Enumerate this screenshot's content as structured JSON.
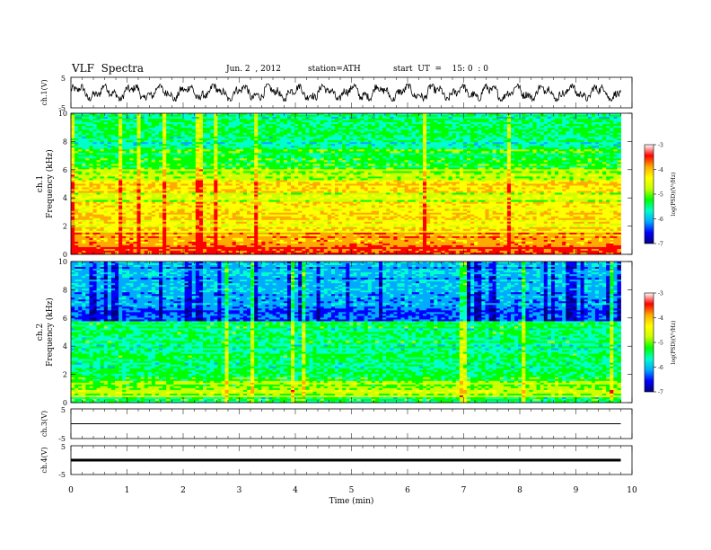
{
  "header": {
    "title": "VLF  Spectra",
    "date": "Jun. 2  , 2012",
    "station": "station=ATH",
    "start": "start  UT  =    15: 0  : 0"
  },
  "chart_data": [
    {
      "type": "line",
      "panel": "ch1-waveform",
      "ylabel": "ch.1(V)",
      "yticks": [
        "5",
        "-5"
      ],
      "ylim": [
        -5,
        5
      ],
      "color": "#000000"
    },
    {
      "type": "heatmap",
      "panel": "ch1-spectrogram",
      "ylabel": "ch.1\nFrequency  (kHz)",
      "ylabel_lines": [
        "ch.1",
        "Frequency  (kHz)"
      ],
      "ylim": [
        0,
        10
      ],
      "yticks": [
        "0",
        "2",
        "4",
        "6",
        "8",
        "10"
      ],
      "colorbar": {
        "label": "log(PSD)(V²/Hz)",
        "range": [
          -7,
          -3
        ],
        "ticks": [
          "-3",
          "-4",
          "-5",
          "-6",
          "-7"
        ]
      }
    },
    {
      "type": "heatmap",
      "panel": "ch2-spectrogram",
      "ylabel": "ch.2\nFrequency  (kHz)",
      "ylabel_lines": [
        "ch.2",
        "Frequency  (kHz)"
      ],
      "ylim": [
        0,
        10
      ],
      "yticks": [
        "0",
        "2",
        "4",
        "6",
        "8",
        "10"
      ],
      "colorbar": {
        "label": "log(PSD)(V²/Hz)",
        "range": [
          -7,
          -3
        ],
        "ticks": [
          "-3",
          "-4",
          "-5",
          "-6",
          "-7"
        ]
      }
    },
    {
      "type": "line",
      "panel": "ch3-waveform",
      "ylabel": "ch.3(V)",
      "yticks": [
        "5",
        "-5"
      ],
      "ylim": [
        -5,
        5
      ],
      "level": 0
    },
    {
      "type": "line",
      "panel": "ch4-waveform",
      "ylabel": "ch.4(V)",
      "yticks": [
        "5",
        "-5"
      ],
      "ylim": [
        -5,
        5
      ],
      "level": 0
    }
  ],
  "xaxis": {
    "xlabel": "Time  (min)",
    "xlim": [
      0,
      10
    ],
    "data_end": 9.8,
    "ticks": [
      "0",
      "1",
      "2",
      "3",
      "4",
      "5",
      "6",
      "7",
      "8",
      "9",
      "10"
    ]
  },
  "colormap": [
    "#000080",
    "#0000ff",
    "#00aaff",
    "#00ffcc",
    "#00ff00",
    "#ccff00",
    "#ffff00",
    "#ffaa00",
    "#ff0000",
    "#ffffff"
  ]
}
